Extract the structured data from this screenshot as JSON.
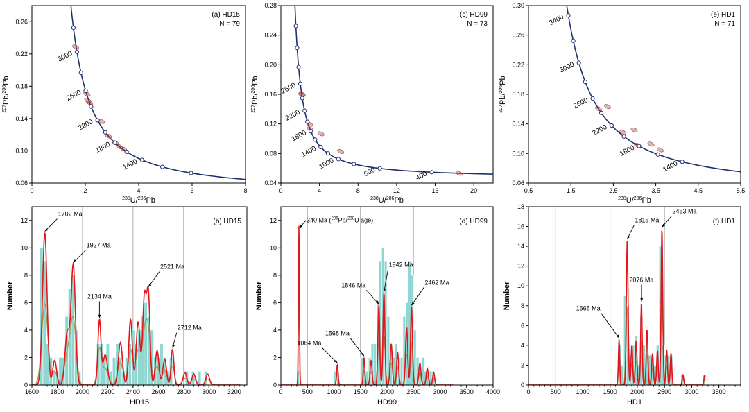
{
  "chart_data": [
    {
      "id": "a",
      "type": "scatter",
      "panel_label": "(a) HD15",
      "n_label": "N = 79",
      "xlabel_main": "U/",
      "xlabel_sup1": "238",
      "xlabel_sup2": "206",
      "xlabel_end": "Pb",
      "ylabel_main": "Pb/",
      "ylabel_sup1": "207",
      "ylabel_sup2": "206",
      "ylabel_end": "Pb",
      "xlim": [
        0,
        8
      ],
      "ylim": [
        0.06,
        0.28
      ],
      "xticks": [
        0,
        2,
        4,
        6,
        8
      ],
      "yticks": [
        0.06,
        0.1,
        0.14,
        0.18,
        0.22,
        0.26
      ],
      "ytick_decimals": 2,
      "grid": false,
      "concordia_ages": [
        3400,
        3200,
        3000,
        2800,
        2600,
        2400,
        2200,
        2000,
        1800,
        1600,
        1400,
        1200,
        1000,
        600
      ],
      "age_labels": [
        "3000",
        "2600",
        "2200",
        "1800",
        "1400"
      ],
      "ellipses": [
        {
          "age": 2600,
          "dx": 0.08,
          "dy": -0.012
        },
        {
          "age": 2520,
          "dx": -0.03,
          "dy": 0.004
        },
        {
          "age": 2450,
          "dx": 0.0,
          "dy": 0.0
        },
        {
          "age": 2130,
          "dx": 0.05,
          "dy": 0.004
        },
        {
          "age": 1930,
          "dx": 0.0,
          "dy": 0.0
        },
        {
          "age": 1800,
          "dx": 0.02,
          "dy": 0.0
        },
        {
          "age": 1720,
          "dx": 0.0,
          "dy": 0.0
        },
        {
          "age": 1700,
          "dx": 0.12,
          "dy": -0.002
        },
        {
          "age": 3000,
          "dx": -0.05,
          "dy": 0.006
        }
      ]
    },
    {
      "id": "c",
      "type": "scatter",
      "panel_label": "(c) HD99",
      "n_label": "N = 73",
      "xlabel_main": "U/",
      "xlabel_sup1": "238",
      "xlabel_sup2": "206",
      "xlabel_end": "Pb",
      "ylabel_main": "Pb/",
      "ylabel_sup1": "207",
      "ylabel_sup2": "206",
      "ylabel_end": "Pb",
      "xlim": [
        0,
        22
      ],
      "ylim": [
        0.04,
        0.28
      ],
      "xticks": [
        0,
        4,
        8,
        12,
        16,
        20
      ],
      "yticks": [
        0.04,
        0.08,
        0.12,
        0.16,
        0.2,
        0.24,
        0.28
      ],
      "ytick_decimals": 2,
      "grid": false,
      "concordia_ages": [
        3400,
        3200,
        3000,
        2800,
        2600,
        2400,
        2200,
        2000,
        1800,
        1600,
        1400,
        1200,
        1000,
        800,
        600,
        400
      ],
      "age_labels": [
        "2600",
        "2200",
        "1800",
        "1400",
        "1000",
        "600",
        "400"
      ],
      "ellipses": [
        {
          "age": 2500,
          "dx": 0.1,
          "dy": -0.004
        },
        {
          "age": 2450,
          "dx": 0.0,
          "dy": 0.0
        },
        {
          "age": 1950,
          "dx": 0.15,
          "dy": 0.0
        },
        {
          "age": 1850,
          "dx": 0.0,
          "dy": 0.0
        },
        {
          "age": 1560,
          "dx": 0.5,
          "dy": 0.01
        },
        {
          "age": 1060,
          "dx": 0.6,
          "dy": 0.008
        },
        {
          "age": 340,
          "dx": 0.0,
          "dy": 0.0
        }
      ]
    },
    {
      "id": "e",
      "type": "scatter",
      "panel_label": "(e) HD1",
      "n_label": "N = 71",
      "xlabel_main": "U/",
      "xlabel_sup1": "238",
      "xlabel_sup2": "206",
      "xlabel_end": "Pb",
      "ylabel_main": "Pb/",
      "ylabel_sup1": "207",
      "ylabel_sup2": "206",
      "ylabel_end": "Pb",
      "xlim": [
        0.5,
        5.5
      ],
      "ylim": [
        0.06,
        0.3
      ],
      "xticks": [
        0.5,
        1.5,
        2.5,
        3.5,
        4.5,
        5.5
      ],
      "yticks": [
        0.06,
        0.1,
        0.14,
        0.18,
        0.22,
        0.26,
        0.3
      ],
      "ytick_decimals": 2,
      "grid": false,
      "concordia_ages": [
        3400,
        3200,
        3000,
        2800,
        2600,
        2400,
        2200,
        2000,
        1800,
        1600,
        1400
      ],
      "age_labels": [
        "3400",
        "3000",
        "2600",
        "2200",
        "1800",
        "1400"
      ],
      "ellipses": [
        {
          "age": 2460,
          "dx": 0.0,
          "dy": 0.0
        },
        {
          "age": 2450,
          "dx": 0.2,
          "dy": 0.004
        },
        {
          "age": 2080,
          "dx": 0.1,
          "dy": 0.0
        },
        {
          "age": 2070,
          "dx": 0.35,
          "dy": 0.004
        },
        {
          "age": 1820,
          "dx": 0.0,
          "dy": 0.0
        },
        {
          "age": 1810,
          "dx": 0.3,
          "dy": 0.002
        },
        {
          "age": 1660,
          "dx": 0.2,
          "dy": 0.003
        }
      ]
    },
    {
      "id": "b",
      "type": "bar",
      "panel_label": "(b) HD15",
      "xlabel": "HD15",
      "ylabel": "Number",
      "xlim": [
        1600,
        3300
      ],
      "ylim": [
        0,
        13
      ],
      "xticks": [
        1600,
        1800,
        2000,
        2200,
        2400,
        2600,
        2800,
        3000,
        3200
      ],
      "yticks": [
        0,
        2,
        4,
        6,
        8,
        10,
        12
      ],
      "gridlines_x": [
        2000,
        2400,
        2800
      ],
      "bin_width": 25,
      "bins": [
        [
          1675,
          10
        ],
        [
          1700,
          9
        ],
        [
          1725,
          3
        ],
        [
          1750,
          2
        ],
        [
          1775,
          1
        ],
        [
          1800,
          1
        ],
        [
          1825,
          2
        ],
        [
          1850,
          2
        ],
        [
          1875,
          5
        ],
        [
          1900,
          7
        ],
        [
          1925,
          8
        ],
        [
          1950,
          4
        ],
        [
          1975,
          1
        ],
        [
          2125,
          3
        ],
        [
          2150,
          3
        ],
        [
          2175,
          2
        ],
        [
          2200,
          3
        ],
        [
          2225,
          1
        ],
        [
          2250,
          2
        ],
        [
          2275,
          3
        ],
        [
          2300,
          2
        ],
        [
          2325,
          1
        ],
        [
          2350,
          2
        ],
        [
          2375,
          3
        ],
        [
          2400,
          4
        ],
        [
          2425,
          3
        ],
        [
          2450,
          4
        ],
        [
          2475,
          5
        ],
        [
          2500,
          6
        ],
        [
          2525,
          5
        ],
        [
          2550,
          4
        ],
        [
          2575,
          2
        ],
        [
          2600,
          2
        ],
        [
          2625,
          3
        ],
        [
          2650,
          2
        ],
        [
          2675,
          1
        ],
        [
          2700,
          2
        ],
        [
          2825,
          1
        ],
        [
          2875,
          1
        ],
        [
          2925,
          1
        ],
        [
          2975,
          1
        ]
      ],
      "kde_peaks": [
        {
          "center": 1702,
          "height": 11.1,
          "sigma": 18
        },
        {
          "center": 1780,
          "height": 1.8,
          "sigma": 15
        },
        {
          "center": 1880,
          "height": 3.8,
          "sigma": 18
        },
        {
          "center": 1927,
          "height": 8.7,
          "sigma": 17
        },
        {
          "center": 2134,
          "height": 4.7,
          "sigma": 12
        },
        {
          "center": 2180,
          "height": 2.2,
          "sigma": 18
        },
        {
          "center": 2300,
          "height": 3.1,
          "sigma": 16
        },
        {
          "center": 2380,
          "height": 4.8,
          "sigma": 14
        },
        {
          "center": 2440,
          "height": 4.6,
          "sigma": 15
        },
        {
          "center": 2490,
          "height": 6.4,
          "sigma": 14
        },
        {
          "center": 2521,
          "height": 6.5,
          "sigma": 13
        },
        {
          "center": 2590,
          "height": 2.5,
          "sigma": 14
        },
        {
          "center": 2650,
          "height": 1.9,
          "sigma": 14
        },
        {
          "center": 2712,
          "height": 2.6,
          "sigma": 11
        },
        {
          "center": 2810,
          "height": 0.9,
          "sigma": 14
        },
        {
          "center": 2880,
          "height": 0.8,
          "sigma": 14
        },
        {
          "center": 2990,
          "height": 0.8,
          "sigma": 14
        }
      ],
      "annotations": [
        {
          "label": "1702 Ma",
          "age": 1702,
          "dx_px": 18,
          "dy_px": -22
        },
        {
          "label": "1927 Ma",
          "age": 1927,
          "dx_px": 18,
          "dy_px": -22
        },
        {
          "label": "2134 Ma",
          "age": 2134,
          "dx_px": 0,
          "dy_px": -28
        },
        {
          "label": "2521 Ma",
          "age": 2521,
          "dx_px": 16,
          "dy_px": -26
        },
        {
          "label": "2712 Ma",
          "age": 2712,
          "dx_px": 6,
          "dy_px": -26
        }
      ]
    },
    {
      "id": "d",
      "type": "bar",
      "panel_label": "(d) HD99",
      "xlabel": "HD99",
      "ylabel": "Number",
      "xlim": [
        0,
        4000
      ],
      "ylim": [
        0,
        13
      ],
      "xticks": [
        0,
        500,
        1000,
        1500,
        2000,
        2500,
        3000,
        3500,
        4000
      ],
      "yticks": [
        0,
        2,
        4,
        6,
        8,
        10,
        12
      ],
      "gridlines_x": [
        500,
        1500,
        2500
      ],
      "bin_width": 50,
      "bins": [
        [
          325,
          1
        ],
        [
          1025,
          1
        ],
        [
          1075,
          1
        ],
        [
          1525,
          2
        ],
        [
          1575,
          1
        ],
        [
          1625,
          1
        ],
        [
          1675,
          2
        ],
        [
          1725,
          3
        ],
        [
          1775,
          3
        ],
        [
          1825,
          6
        ],
        [
          1875,
          9
        ],
        [
          1925,
          10
        ],
        [
          1975,
          9
        ],
        [
          2025,
          5
        ],
        [
          2075,
          3
        ],
        [
          2125,
          2
        ],
        [
          2175,
          3
        ],
        [
          2225,
          2
        ],
        [
          2275,
          2
        ],
        [
          2325,
          5
        ],
        [
          2375,
          6
        ],
        [
          2425,
          9
        ],
        [
          2475,
          8
        ],
        [
          2525,
          4
        ],
        [
          2575,
          2
        ],
        [
          2625,
          1
        ],
        [
          2675,
          2
        ],
        [
          2725,
          1
        ],
        [
          2775,
          1
        ],
        [
          2825,
          1
        ],
        [
          2875,
          1
        ]
      ],
      "kde_peaks": [
        {
          "center": 340,
          "height": 11.6,
          "sigma": 9
        },
        {
          "center": 1064,
          "height": 1.5,
          "sigma": 14
        },
        {
          "center": 1568,
          "height": 2.0,
          "sigma": 14
        },
        {
          "center": 1700,
          "height": 1.8,
          "sigma": 18
        },
        {
          "center": 1846,
          "height": 5.8,
          "sigma": 17
        },
        {
          "center": 1942,
          "height": 6.7,
          "sigma": 18
        },
        {
          "center": 2080,
          "height": 3.0,
          "sigma": 20
        },
        {
          "center": 2200,
          "height": 2.4,
          "sigma": 18
        },
        {
          "center": 2370,
          "height": 4.2,
          "sigma": 20
        },
        {
          "center": 2462,
          "height": 5.7,
          "sigma": 18
        },
        {
          "center": 2620,
          "height": 1.6,
          "sigma": 20
        },
        {
          "center": 2760,
          "height": 1.2,
          "sigma": 20
        },
        {
          "center": 2880,
          "height": 0.9,
          "sigma": 18
        }
      ],
      "annotations": [
        {
          "label": "1064 Ma",
          "age": 1064,
          "dx_px": -22,
          "dy_px": -26
        },
        {
          "label": "1568 Ma",
          "age": 1568,
          "dx_px": -20,
          "dy_px": -30
        },
        {
          "label": "1846 Ma",
          "age": 1846,
          "dx_px": -18,
          "dy_px": -24
        },
        {
          "label": "1942 Ma",
          "age": 1942,
          "dx_px": 6,
          "dy_px": -36
        },
        {
          "label": "2462 Ma",
          "age": 2462,
          "dx_px": 18,
          "dy_px": -30
        }
      ],
      "top_note": {
        "age": 340,
        "prefix": "340 Ma (",
        "sup1": "206",
        "mid": "Pb/",
        "sup2": "238",
        "suffix": "U age)"
      }
    },
    {
      "id": "f",
      "type": "bar",
      "panel_label": "(f) HD1",
      "xlabel": "HD1",
      "ylabel": "Number",
      "xlim": [
        0,
        3900
      ],
      "ylim": [
        0,
        18
      ],
      "xticks": [
        0,
        500,
        1000,
        1500,
        2000,
        2500,
        3000,
        3500
      ],
      "yticks": [
        0,
        2,
        4,
        6,
        8,
        10,
        12,
        14,
        16,
        18
      ],
      "gridlines_x": [
        500,
        1500,
        2500
      ],
      "bin_width": 50,
      "bins": [
        [
          1675,
          4
        ],
        [
          1725,
          2
        ],
        [
          1775,
          9
        ],
        [
          1825,
          8
        ],
        [
          1875,
          3
        ],
        [
          1925,
          4
        ],
        [
          1975,
          5
        ],
        [
          2025,
          2
        ],
        [
          2075,
          7
        ],
        [
          2125,
          4
        ],
        [
          2175,
          5
        ],
        [
          2225,
          3
        ],
        [
          2275,
          3
        ],
        [
          2325,
          2
        ],
        [
          2375,
          4
        ],
        [
          2425,
          14
        ],
        [
          2475,
          4
        ],
        [
          2525,
          3
        ],
        [
          2575,
          3
        ],
        [
          2625,
          3
        ],
        [
          2825,
          1
        ],
        [
          3225,
          1
        ]
      ],
      "kde_peaks": [
        {
          "center": 1665,
          "height": 4.6,
          "sigma": 12
        },
        {
          "center": 1815,
          "height": 14.6,
          "sigma": 16
        },
        {
          "center": 1900,
          "height": 4.0,
          "sigma": 15
        },
        {
          "center": 1980,
          "height": 4.5,
          "sigma": 15
        },
        {
          "center": 2076,
          "height": 8.3,
          "sigma": 14
        },
        {
          "center": 2180,
          "height": 5.6,
          "sigma": 15
        },
        {
          "center": 2280,
          "height": 3.2,
          "sigma": 15
        },
        {
          "center": 2370,
          "height": 3.5,
          "sigma": 14
        },
        {
          "center": 2453,
          "height": 15.8,
          "sigma": 15
        },
        {
          "center": 2540,
          "height": 3.6,
          "sigma": 14
        },
        {
          "center": 2620,
          "height": 3.2,
          "sigma": 14
        },
        {
          "center": 2840,
          "height": 1.0,
          "sigma": 14
        },
        {
          "center": 3240,
          "height": 1.0,
          "sigma": 14
        }
      ],
      "annotations": [
        {
          "label": "1665 Ma",
          "age": 1665,
          "dx_px": -26,
          "dy_px": -40
        },
        {
          "label": "1815 Ma",
          "age": 1815,
          "dx_px": 10,
          "dy_px": -24
        },
        {
          "label": "2076 Ma",
          "age": 2076,
          "dx_px": 0,
          "dy_px": -28
        },
        {
          "label": "2453 Ma",
          "age": 2453,
          "dx_px": 14,
          "dy_px": -20
        }
      ]
    }
  ]
}
